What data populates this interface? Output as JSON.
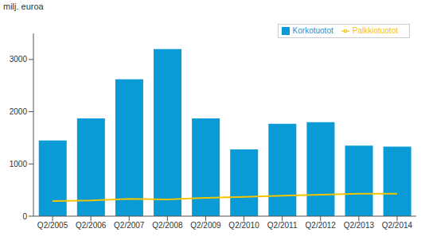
{
  "chart_data": {
    "type": "bar",
    "y_label": "milj. euroa",
    "categories": [
      "Q2/2005",
      "Q2/2006",
      "Q2/2007",
      "Q2/2008",
      "Q2/2009",
      "Q2/2010",
      "Q2/2011",
      "Q2/2012",
      "Q2/2013",
      "Q2/2014"
    ],
    "series": [
      {
        "name": "Korkotuotot",
        "type": "bar",
        "color": "#0a9ad6",
        "values": [
          1450,
          1870,
          2620,
          3200,
          1870,
          1280,
          1770,
          1800,
          1350,
          1330
        ]
      },
      {
        "name": "Palkkiotuotot",
        "type": "line",
        "color": "#f5c400",
        "values": [
          290,
          300,
          330,
          320,
          350,
          370,
          390,
          410,
          430,
          430
        ]
      }
    ],
    "ylim": [
      0,
      3500
    ],
    "yticks": [
      0,
      1000,
      2000,
      3000
    ],
    "grid": false,
    "legend": "top-right"
  }
}
